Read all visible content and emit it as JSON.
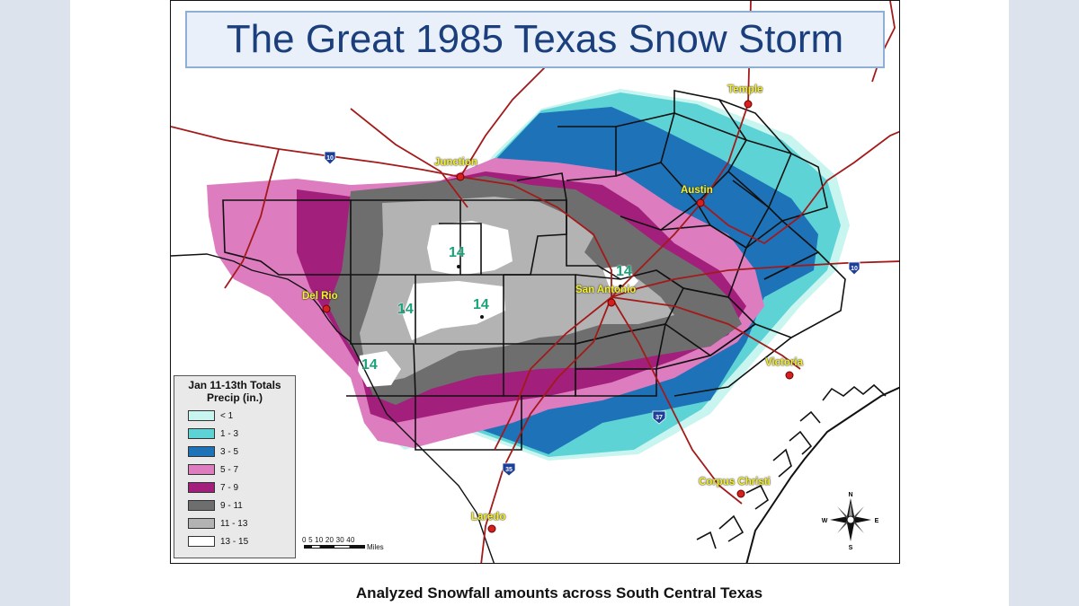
{
  "title": "The Great 1985 Texas Snow Storm",
  "caption": "Analyzed Snowfall amounts across South Central Texas",
  "cities": [
    {
      "name": "Temple"
    },
    {
      "name": "Junction"
    },
    {
      "name": "Austin"
    },
    {
      "name": "San Antonio"
    },
    {
      "name": "Del Rio"
    },
    {
      "name": "Victoria"
    },
    {
      "name": "Corpus Christi"
    },
    {
      "name": "Laredo"
    }
  ],
  "highways": [
    "10",
    "10",
    "37",
    "35"
  ],
  "snow_maxima": [
    "14",
    "14",
    "14",
    "14",
    "14"
  ],
  "legend": {
    "title": "Jan 11-13th Totals",
    "subtitle": "Precip (in.)",
    "items": [
      {
        "label": "< 1",
        "color": "#c8f5ef"
      },
      {
        "label": "1 - 3",
        "color": "#5ed3d6"
      },
      {
        "label": "3 - 5",
        "color": "#1d72b8"
      },
      {
        "label": "5 - 7",
        "color": "#de7cc0"
      },
      {
        "label": "7 - 9",
        "color": "#a21f7b"
      },
      {
        "label": "9 - 11",
        "color": "#6e6e6e"
      },
      {
        "label": "11 - 13",
        "color": "#b3b3b3"
      },
      {
        "label": "13 - 15",
        "color": "#ffffff"
      }
    ]
  },
  "scale": {
    "ticks": "0  5 10    20     30     40",
    "units": "Miles"
  },
  "compass": {
    "n": "N",
    "s": "S",
    "e": "E",
    "w": "W"
  }
}
